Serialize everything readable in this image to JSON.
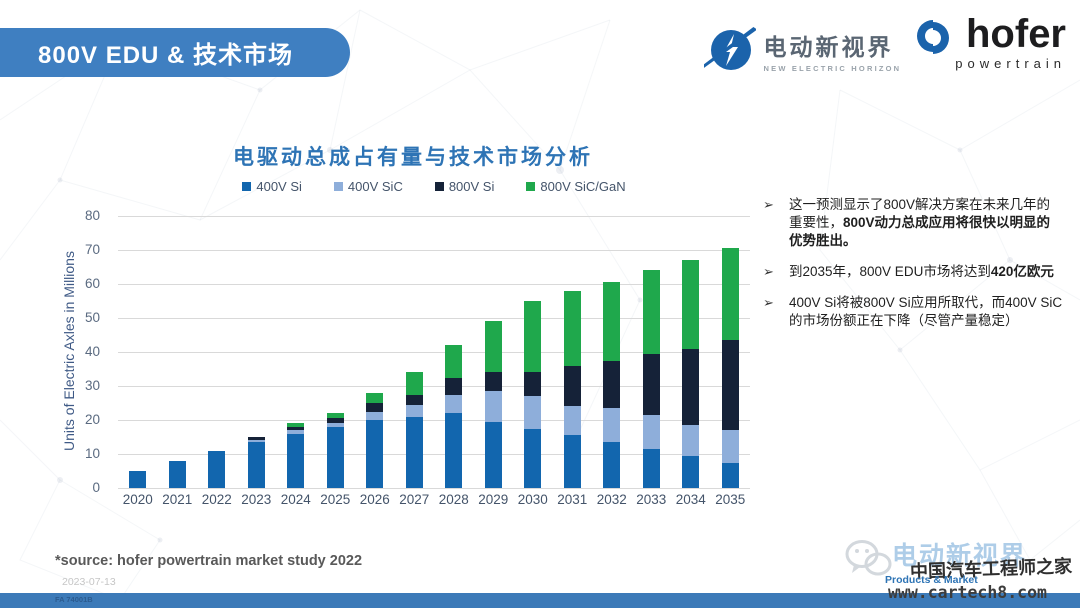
{
  "colors": {
    "banner_blue": "#3f7fc1",
    "title_blue": "#2e74b5",
    "axis_text": "#44546a",
    "gridline": "#d9d9d9",
    "bottom_bar": "#3c7ab8",
    "logo_blue": "#1b63ab"
  },
  "banner": {
    "title": "800V EDU & 技术市场"
  },
  "logos": {
    "neh": {
      "name": "电动新视界",
      "subtitle": "NEW ELECTRIC HORIZON",
      "icon": "lightning-circle-icon"
    },
    "hofer": {
      "name": "hofer",
      "subtitle": "powertrain",
      "icon": "hofer-swirl-icon"
    }
  },
  "chart_data": {
    "type": "bar",
    "stacked": true,
    "title": "电驱动总成占有量与技术市场分析",
    "ylabel": "Units of Electric Axles in Millions",
    "xlabel": "",
    "ylim": [
      0,
      80
    ],
    "yticks": [
      0,
      10,
      20,
      30,
      40,
      50,
      60,
      70,
      80
    ],
    "grid": true,
    "legend_position": "top-center",
    "categories": [
      "2020",
      "2021",
      "2022",
      "2023",
      "2024",
      "2025",
      "2026",
      "2027",
      "2028",
      "2029",
      "2030",
      "2031",
      "2032",
      "2033",
      "2034",
      "2035"
    ],
    "series": [
      {
        "name": "400V Si",
        "color": "#1266ae",
        "values": [
          5,
          8,
          11,
          13.5,
          16,
          18,
          20,
          21,
          22,
          19.5,
          17.5,
          15.5,
          13.5,
          11.5,
          9.5,
          7.5
        ]
      },
      {
        "name": "400V SiC",
        "color": "#8eaeda",
        "values": [
          0,
          0,
          0,
          0.5,
          1,
          1,
          2.5,
          3.5,
          5.5,
          9,
          9.5,
          8.5,
          10,
          10,
          9,
          9.5
        ]
      },
      {
        "name": "800V Si",
        "color": "#152238",
        "values": [
          0,
          0,
          0,
          1,
          1,
          1.5,
          2.5,
          3,
          5,
          5.5,
          7,
          12,
          14,
          18,
          22.5,
          26.5
        ]
      },
      {
        "name": "800V SiC/GaN",
        "color": "#1fa84c",
        "values": [
          0,
          0,
          0,
          0,
          1,
          1.5,
          3,
          6.5,
          9.5,
          15,
          21,
          22,
          23,
          24.5,
          26,
          27
        ]
      }
    ],
    "totals": [
      5,
      8,
      11,
      15,
      19,
      22,
      28,
      34,
      42,
      49,
      55,
      58,
      60.5,
      64,
      67,
      70.5
    ]
  },
  "panel": {
    "marker": "➢",
    "bullets": [
      {
        "segments": [
          {
            "t": "这一预测显示了800V解决方案在未来几年的重要性，",
            "b": false
          },
          {
            "t": "800V动力总成应用将很快以明显的优势胜出。",
            "b": true
          }
        ]
      },
      {
        "segments": [
          {
            "t": "到2035年，800V EDU市场将达到",
            "b": false
          },
          {
            "t": "420亿欧元",
            "b": true
          }
        ]
      },
      {
        "segments": [
          {
            "t": "400V Si将被800V Si应用所取代，而400V SiC的市场份额正在下降（尽管产量稳定）",
            "b": false
          }
        ]
      }
    ]
  },
  "footer": {
    "source": "*source: hofer powertrain market study 2022",
    "date": "2023-07-13",
    "doc_code": "FA 74001B"
  },
  "watermark": {
    "brand": "电动新视界",
    "site_name": "中国汽车工程师之家",
    "products_label": "Products & Market",
    "url": "www.cartech8.com",
    "icon": "wechat-icon"
  }
}
